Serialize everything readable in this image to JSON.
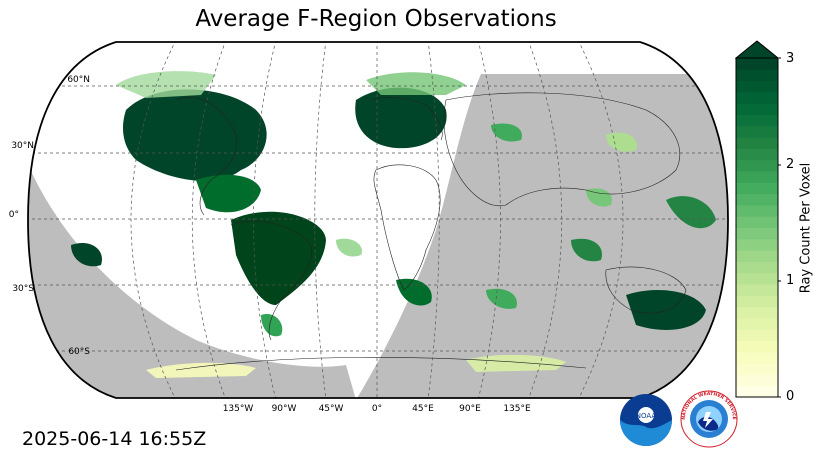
{
  "title": "Average F-Region Observations",
  "timestamp": "2025-06-14 16:55Z",
  "map": {
    "projection": "Robinson",
    "lat_labels": [
      "60°N",
      "30°N",
      "0°",
      "30°S",
      "60°S"
    ],
    "lon_labels": [
      "135°W",
      "90°W",
      "45°W",
      "0°",
      "45°E",
      "90°E",
      "135°E"
    ],
    "night_shade_color": "#bdbdbd",
    "grid_style": "dashed"
  },
  "colorbar": {
    "label": "Ray Count Per Voxel",
    "ticks": [
      "0",
      "1",
      "2",
      "3"
    ],
    "range": [
      0,
      3
    ],
    "extend": "max",
    "colormap": "YlGn",
    "color_low": "#ffffe5",
    "color_high": "#004529"
  },
  "logos": {
    "noaa_text": "NOAA",
    "nws_text": "NATIONAL WEATHER SERVICE"
  }
}
